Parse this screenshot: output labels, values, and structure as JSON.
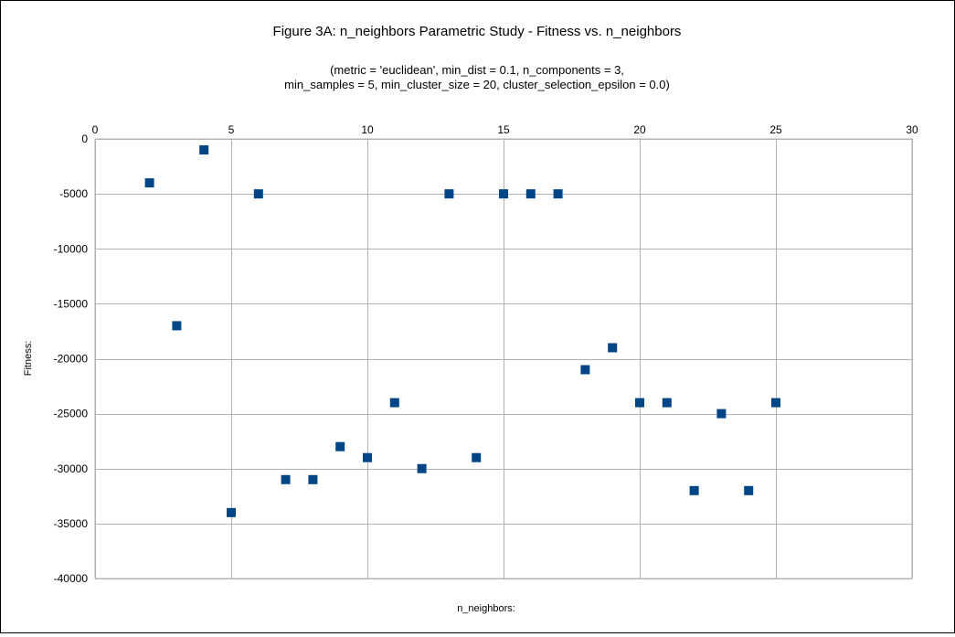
{
  "chart_data": {
    "type": "scatter",
    "title": "Figure 3A: n_neighbors Parametric Study - Fitness vs. n_neighbors",
    "subtitle_lines": [
      "(metric = 'euclidean', min_dist = 0.1, n_components = 3,",
      "min_samples = 5, min_cluster_size = 20, cluster_selection_epsilon = 0.0)"
    ],
    "xlabel": "n_neighbors:",
    "ylabel": "Fitness:",
    "xlim": [
      0,
      30
    ],
    "ylim": [
      -40000,
      0
    ],
    "x_ticks": [
      0,
      5,
      10,
      15,
      20,
      25,
      30
    ],
    "y_ticks": [
      0,
      -5000,
      -10000,
      -15000,
      -20000,
      -25000,
      -30000,
      -35000,
      -40000
    ],
    "x_axis_position": "top",
    "grid": true,
    "legend": "none",
    "marker": "square",
    "color": "#004586",
    "series": [
      {
        "x": [
          2,
          3,
          4,
          5,
          6,
          7,
          8,
          9,
          10,
          11,
          12,
          13,
          14,
          15,
          16,
          17,
          18,
          19,
          20,
          21,
          22,
          23,
          24,
          25
        ],
        "y": [
          -4000,
          -17000,
          -1000,
          -34000,
          -5000,
          -31000,
          -31000,
          -28000,
          -29000,
          -24000,
          -30000,
          -5000,
          -29000,
          -5000,
          -5000,
          -5000,
          -21000,
          -19000,
          -24000,
          -24000,
          -32000,
          -25000,
          -32000,
          -24000
        ]
      }
    ]
  }
}
